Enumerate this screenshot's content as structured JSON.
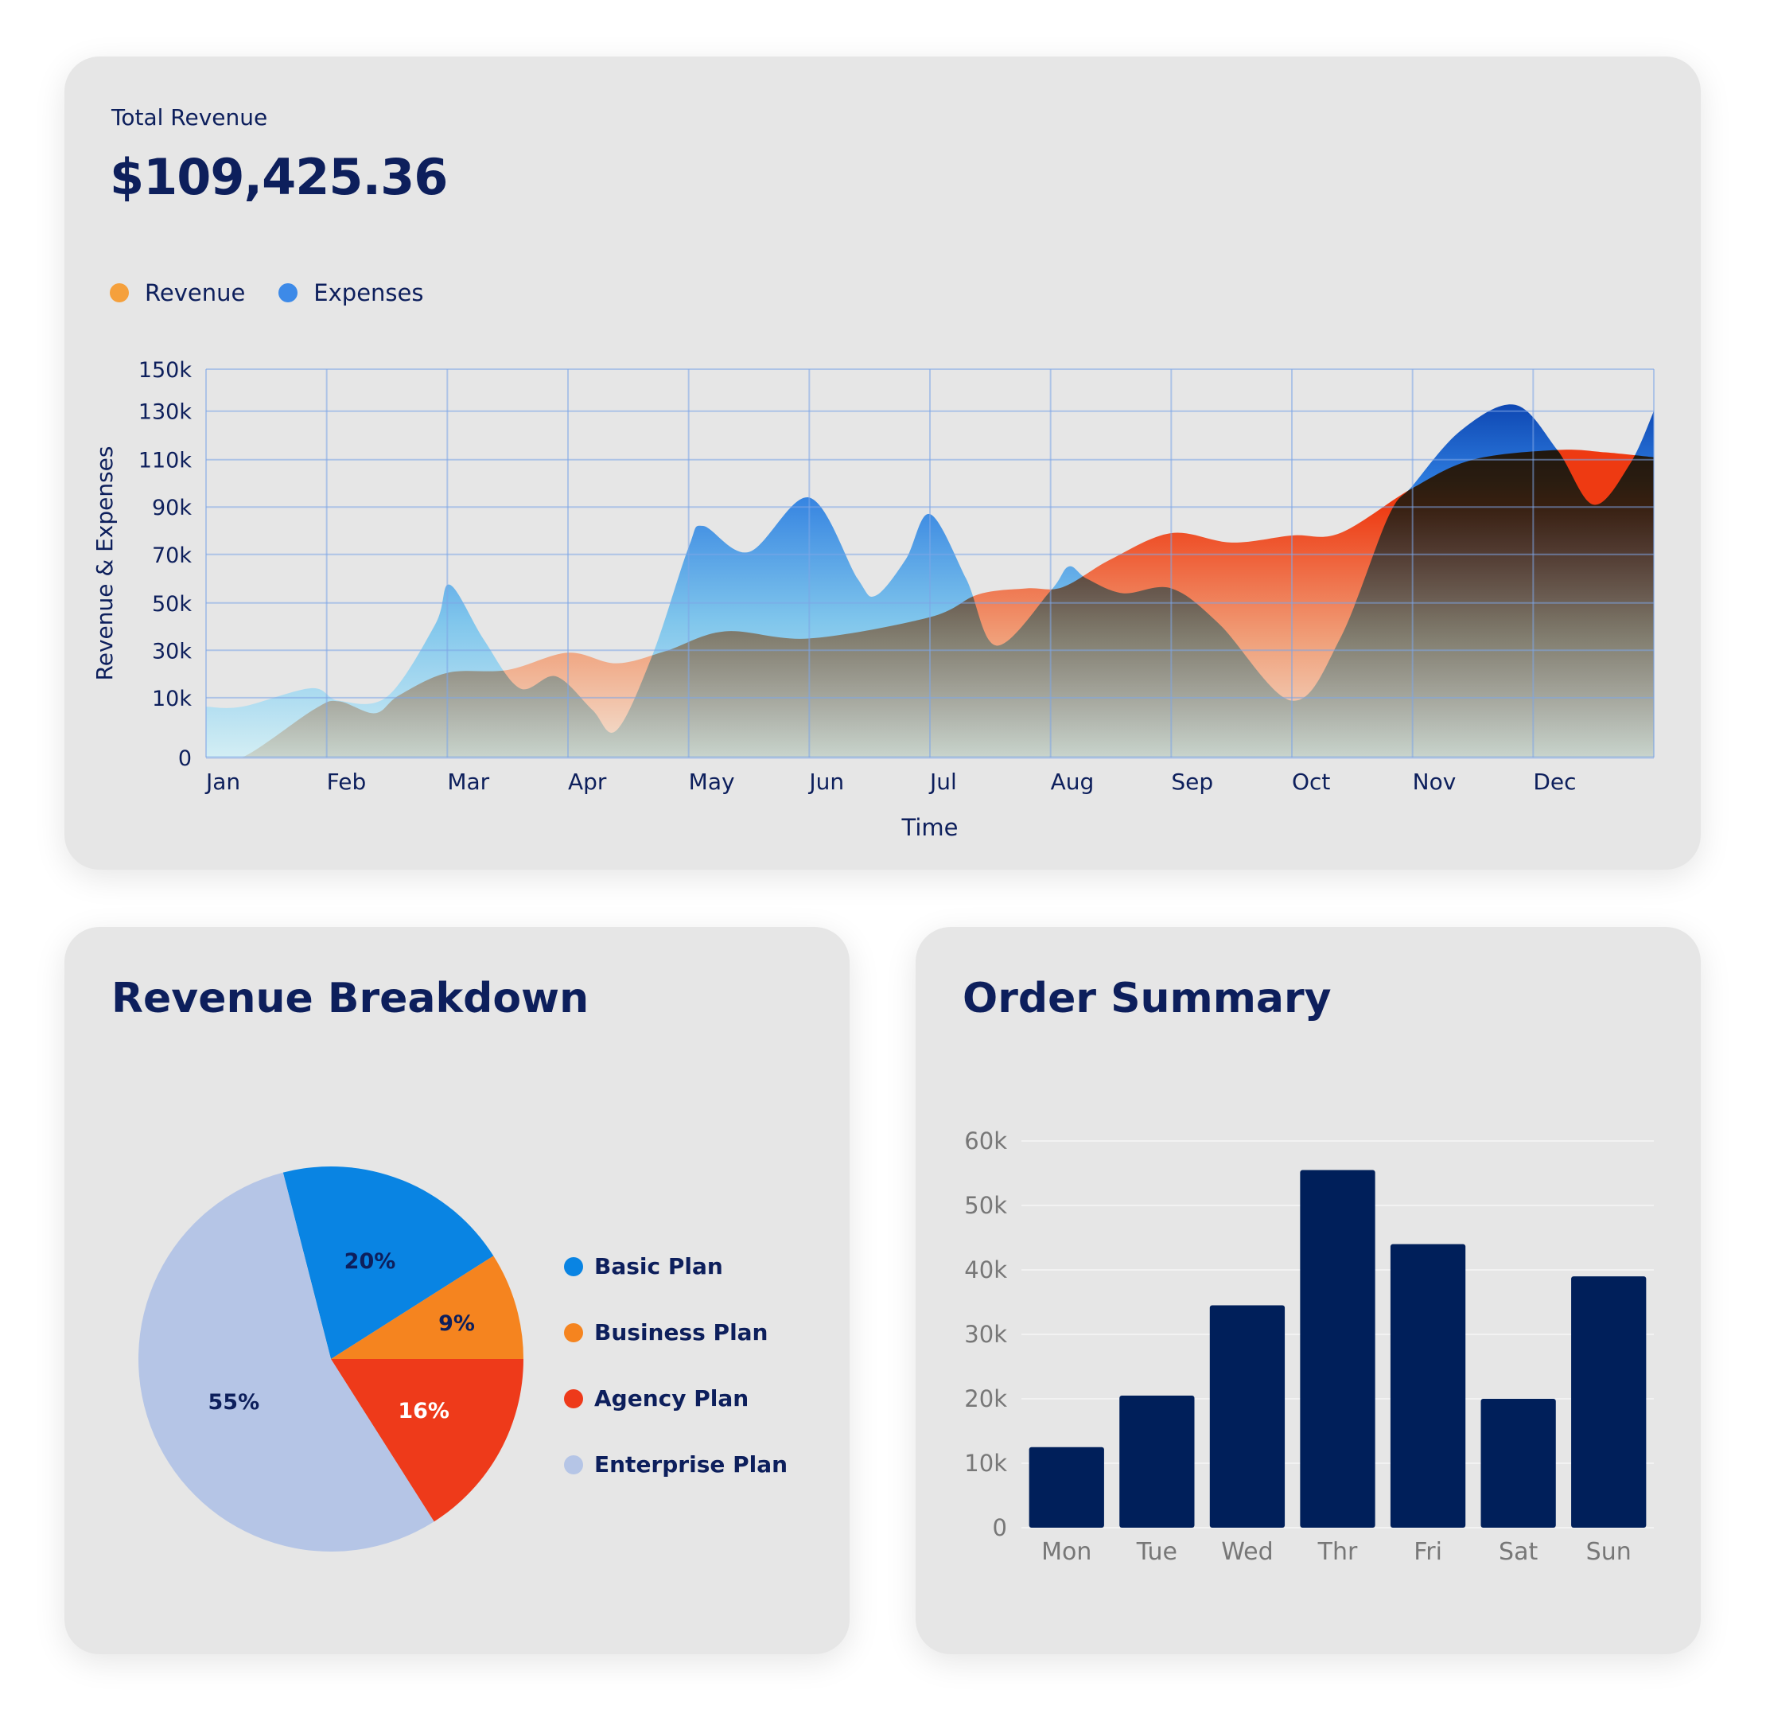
{
  "revenue_card": {
    "kpi_label": "Total Revenue",
    "kpi_value": "$109,425.36",
    "legend": [
      {
        "label": "Revenue",
        "color": "#f5a03c"
      },
      {
        "label": "Expenses",
        "color": "#3d8ae8"
      }
    ]
  },
  "breakdown_card": {
    "title": "Revenue Breakdown"
  },
  "orders_card": {
    "title": "Order Summary"
  },
  "chart_data": [
    {
      "type": "area",
      "title": "",
      "xlabel": "Time",
      "ylabel": "Revenue & Expenses",
      "x_ticks": [
        "Jan",
        "Feb",
        "Mar",
        "Apr",
        "May",
        "Jun",
        "Jul",
        "Aug",
        "Sep",
        "Oct",
        "Nov",
        "Dec"
      ],
      "y_ticks": [
        "0",
        "10k",
        "30k",
        "50k",
        "70k",
        "90k",
        "110k",
        "130k",
        "150k"
      ],
      "y_tick_values": [
        0,
        10,
        30,
        50,
        70,
        90,
        110,
        130,
        150
      ],
      "ylim": [
        0,
        150
      ],
      "xlim": [
        0,
        12
      ],
      "grid": true,
      "series": [
        {
          "name": "Expenses",
          "color": "#1a5fd6",
          "x": [
            0,
            0.3,
            0.87,
            1.1,
            1.5,
            1.9,
            2.02,
            2.3,
            2.6,
            2.9,
            3.2,
            3.4,
            3.7,
            4.0,
            4.12,
            4.5,
            5.0,
            5.4,
            5.55,
            5.8,
            6.0,
            6.3,
            6.55,
            7.0,
            7.15,
            7.3,
            7.6,
            8.0,
            8.4,
            9.0,
            9.4,
            9.8,
            10.0,
            10.4,
            10.85,
            11.2,
            11.5,
            11.8,
            12
          ],
          "y": [
            8.5,
            8.5,
            14,
            9.5,
            10.4,
            41,
            57.5,
            34.7,
            14,
            19,
            8,
            4.5,
            28,
            73,
            82,
            71,
            94,
            60,
            53,
            68,
            87,
            60,
            32,
            55,
            65,
            60,
            54,
            56,
            41,
            9.5,
            35,
            86,
            99,
            122,
            133,
            114,
            91,
            108,
            130
          ]
        },
        {
          "name": "Revenue",
          "color": "#ee3a12",
          "x": [
            0,
            0.3,
            0.9,
            1.1,
            1.4,
            1.6,
            2.0,
            2.5,
            3.0,
            3.4,
            3.8,
            4.3,
            5.0,
            6.0,
            6.4,
            6.8,
            7.1,
            7.5,
            8.0,
            8.5,
            9.0,
            9.4,
            10.0,
            10.5,
            11.2,
            11.6,
            12
          ],
          "y": [
            0,
            0,
            8.1,
            9.4,
            7.4,
            11,
            20.5,
            21.7,
            29,
            24.5,
            29.5,
            38,
            35,
            44,
            53.5,
            56,
            56.5,
            68,
            79,
            75,
            78,
            79,
            98,
            110,
            114,
            113,
            111
          ]
        }
      ]
    },
    {
      "type": "pie",
      "title": "Revenue Breakdown",
      "slices": [
        {
          "label": "Basic Plan",
          "value": 20,
          "display": "20%",
          "color": "#0984e3"
        },
        {
          "label": "Business Plan",
          "value": 9,
          "display": "9%",
          "color": "#f5841f"
        },
        {
          "label": "Agency Plan",
          "value": 16,
          "display": "16%",
          "color": "#ee3a1a"
        },
        {
          "label": "Enterprise Plan",
          "value": 55,
          "display": "55%",
          "color": "#b5c5e6"
        }
      ]
    },
    {
      "type": "bar",
      "title": "Order Summary",
      "categories": [
        "Mon",
        "Tue",
        "Wed",
        "Thr",
        "Fri",
        "Sat",
        "Sun"
      ],
      "values": [
        12.5,
        20.5,
        34.5,
        55.5,
        44,
        20,
        39
      ],
      "y_ticks": [
        "0",
        "10k",
        "20k",
        "30k",
        "40k",
        "50k",
        "60k"
      ],
      "ylim": [
        0,
        60
      ],
      "color": "#001f5a"
    }
  ]
}
